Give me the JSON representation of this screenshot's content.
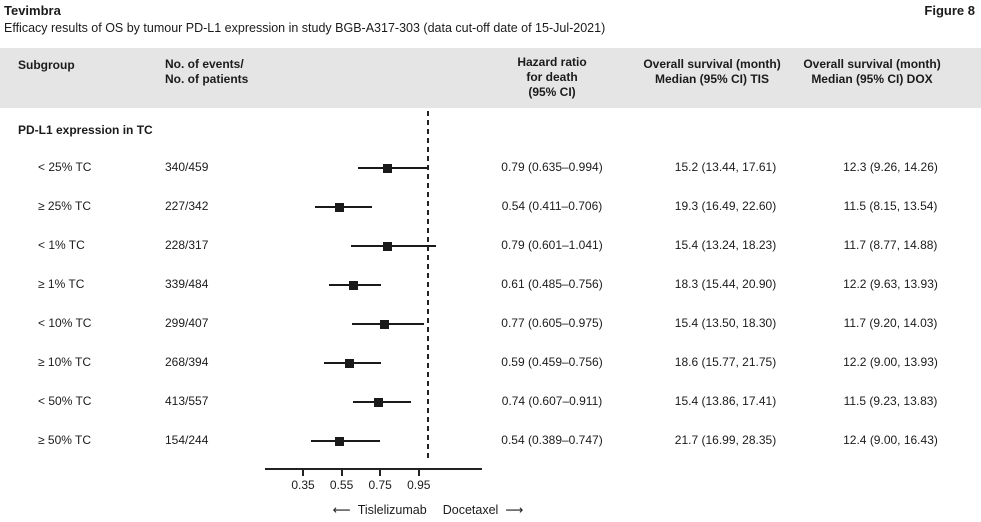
{
  "page": {
    "title": "Tevimbra",
    "figure_label": "Figure 8",
    "subtitle": "Efficacy results of OS by tumour PD-L1 expression in study BGB-A317-303 (data cut-off date of 15-Jul-2021)"
  },
  "table": {
    "headers": {
      "subgroup": "Subgroup",
      "events": "No. of events/\nNo. of patients",
      "hazard": "Hazard ratio\nfor death\n(95% CI)",
      "os_tis": "Overall survival (month)\nMedian (95% CI) TIS",
      "os_dox": "Overall survival (month)\nMedian (95% CI) DOX"
    },
    "group_label": "PD-L1 expression in TC"
  },
  "chart_data": {
    "type": "forest",
    "title": "Efficacy results of OS by tumour PD-L1 expression in study BGB-A317-303",
    "x_ticks": [
      "0.35",
      "0.55",
      "0.75",
      "0.95"
    ],
    "reference_line": 1.0,
    "axis_range": [
      0.17,
      1.26
    ],
    "legend": {
      "left_label": "Tislelizumab",
      "right_label": "Docetaxel",
      "left_arrow": "⟵",
      "right_arrow": "⟶"
    },
    "marker_color": "#1a1a1a",
    "rows": [
      {
        "subgroup": "< 25% TC",
        "events_patients": "340/459",
        "hr": 0.79,
        "ci_low": 0.635,
        "ci_high": 0.994,
        "hr_text": "0.79 (0.635–0.994)",
        "os_tis": "15.2 (13.44, 17.61)",
        "os_dox": "12.3 (9.26, 14.26)"
      },
      {
        "subgroup": "≥ 25% TC",
        "events_patients": "227/342",
        "hr": 0.54,
        "ci_low": 0.411,
        "ci_high": 0.706,
        "hr_text": "0.54 (0.411–0.706)",
        "os_tis": "19.3 (16.49, 22.60)",
        "os_dox": "11.5 (8.15, 13.54)"
      },
      {
        "subgroup": "< 1% TC",
        "events_patients": "228/317",
        "hr": 0.79,
        "ci_low": 0.601,
        "ci_high": 1.041,
        "hr_text": "0.79 (0.601–1.041)",
        "os_tis": "15.4 (13.24, 18.23)",
        "os_dox": "11.7 (8.77, 14.88)"
      },
      {
        "subgroup": "≥ 1% TC",
        "events_patients": "339/484",
        "hr": 0.61,
        "ci_low": 0.485,
        "ci_high": 0.756,
        "hr_text": "0.61 (0.485–0.756)",
        "os_tis": "18.3 (15.44, 20.90)",
        "os_dox": "12.2 (9.63, 13.93)"
      },
      {
        "subgroup": "< 10% TC",
        "events_patients": "299/407",
        "hr": 0.77,
        "ci_low": 0.605,
        "ci_high": 0.975,
        "hr_text": "0.77 (0.605–0.975)",
        "os_tis": "15.4 (13.50, 18.30)",
        "os_dox": "11.7 (9.20, 14.03)"
      },
      {
        "subgroup": "≥ 10% TC",
        "events_patients": "268/394",
        "hr": 0.59,
        "ci_low": 0.459,
        "ci_high": 0.756,
        "hr_text": "0.59 (0.459–0.756)",
        "os_tis": "18.6 (15.77, 21.75)",
        "os_dox": "12.2 (9.00, 13.93)"
      },
      {
        "subgroup": "< 50% TC",
        "events_patients": "413/557",
        "hr": 0.74,
        "ci_low": 0.607,
        "ci_high": 0.911,
        "hr_text": "0.74 (0.607–0.911)",
        "os_tis": "15.4 (13.86, 17.41)",
        "os_dox": "11.5 (9.23, 13.83)"
      },
      {
        "subgroup": "≥ 50% TC",
        "events_patients": "154/244",
        "hr": 0.54,
        "ci_low": 0.389,
        "ci_high": 0.747,
        "hr_text": "0.54 (0.389–0.747)",
        "os_tis": "21.7 (16.99, 28.35)",
        "os_dox": "12.4 (9.00, 16.43)"
      }
    ]
  }
}
